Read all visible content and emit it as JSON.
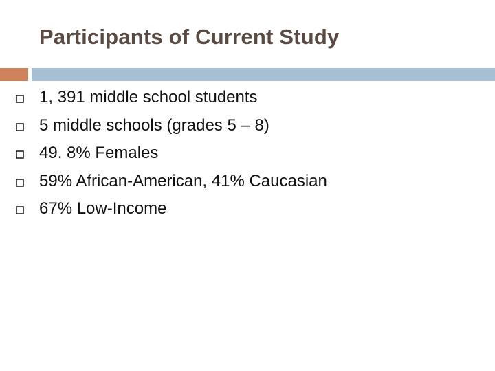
{
  "slide": {
    "title": "Participants of Current Study",
    "bullets": [
      "1, 391 middle school students",
      "5 middle schools (grades 5 – 8)",
      "49. 8% Females",
      "59% African-American, 41% Caucasian",
      "67% Low-Income"
    ],
    "bullet_icon": "hollow-square-bullet-icon"
  },
  "colors": {
    "title": "#5a4a44",
    "accent": "#d0825a",
    "rule": "#a7bfd3",
    "bullet_marker": "#222222",
    "text": "#111111"
  }
}
